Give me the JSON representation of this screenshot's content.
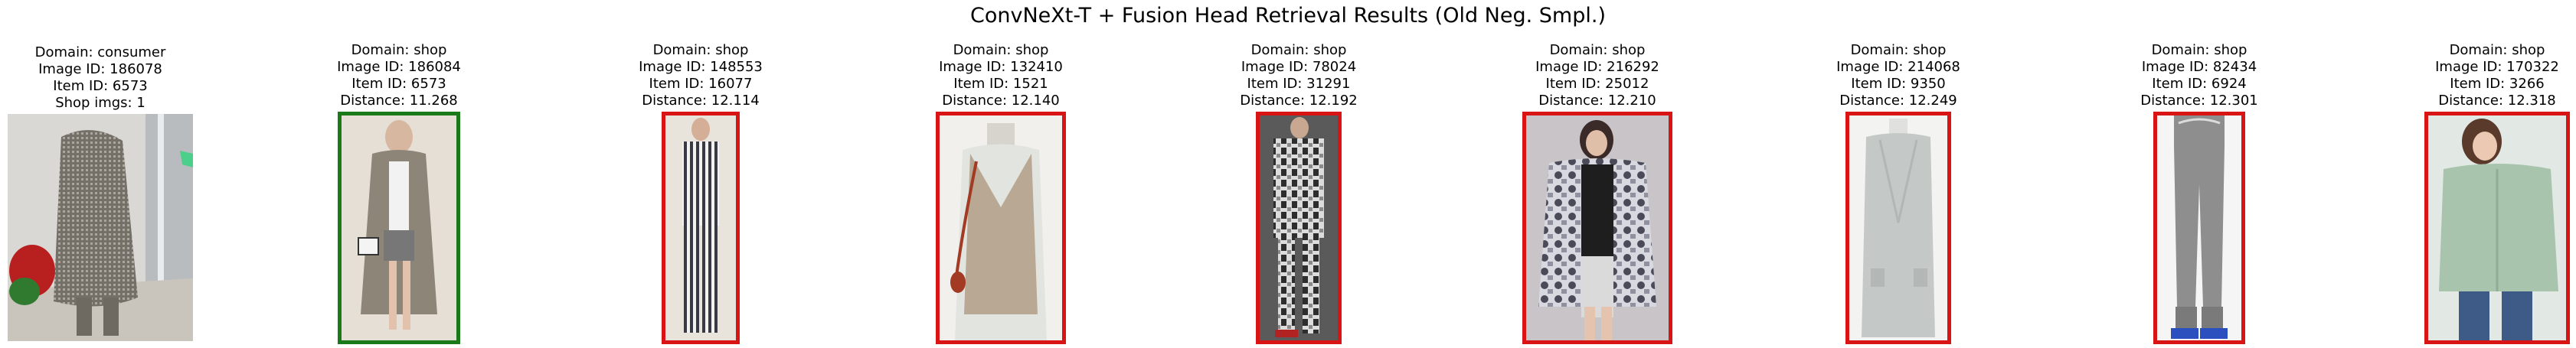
{
  "title": "ConvNeXt-T + Fusion Head Retrieval Results (Old Neg. Smpl.)",
  "match_color": "#1a7a1a",
  "mismatch_color": "#d91414",
  "query": {
    "domain": "Domain: consumer",
    "image_id": "Image ID: 186078",
    "item_id": "Item ID: 6573",
    "shop_imgs": "Shop imgs: 1",
    "garment_color": "#8e8a82"
  },
  "results": [
    {
      "domain": "Domain: shop",
      "image_id": "Image ID: 186084",
      "item_id": "Item ID: 6573",
      "distance": "Distance: 11.268",
      "match": true,
      "garment_color": "#8c8578"
    },
    {
      "domain": "Domain: shop",
      "image_id": "Image ID: 148553",
      "item_id": "Item ID: 16077",
      "distance": "Distance: 12.114",
      "match": false,
      "garment_color": "#6f6f78"
    },
    {
      "domain": "Domain: shop",
      "image_id": "Image ID: 132410",
      "item_id": "Item ID: 1521",
      "distance": "Distance: 12.140",
      "match": false,
      "garment_color": "#b8a894"
    },
    {
      "domain": "Domain: shop",
      "image_id": "Image ID: 78024",
      "item_id": "Item ID: 31291",
      "distance": "Distance: 12.192",
      "match": false,
      "garment_color": "#6b6b6b"
    },
    {
      "domain": "Domain: shop",
      "image_id": "Image ID: 216292",
      "item_id": "Item ID: 25012",
      "distance": "Distance: 12.210",
      "match": false,
      "garment_color": "#8a8a96"
    },
    {
      "domain": "Domain: shop",
      "image_id": "Image ID: 214068",
      "item_id": "Item ID: 9350",
      "distance": "Distance: 12.249",
      "match": false,
      "garment_color": "#c4c8c6"
    },
    {
      "domain": "Domain: shop",
      "image_id": "Image ID: 82434",
      "item_id": "Item ID: 6924",
      "distance": "Distance: 12.301",
      "match": false,
      "garment_color": "#8e8e8e"
    },
    {
      "domain": "Domain: shop",
      "image_id": "Image ID: 170322",
      "item_id": "Item ID: 3266",
      "distance": "Distance: 12.318",
      "match": false,
      "garment_color": "#a9c4ac"
    }
  ]
}
